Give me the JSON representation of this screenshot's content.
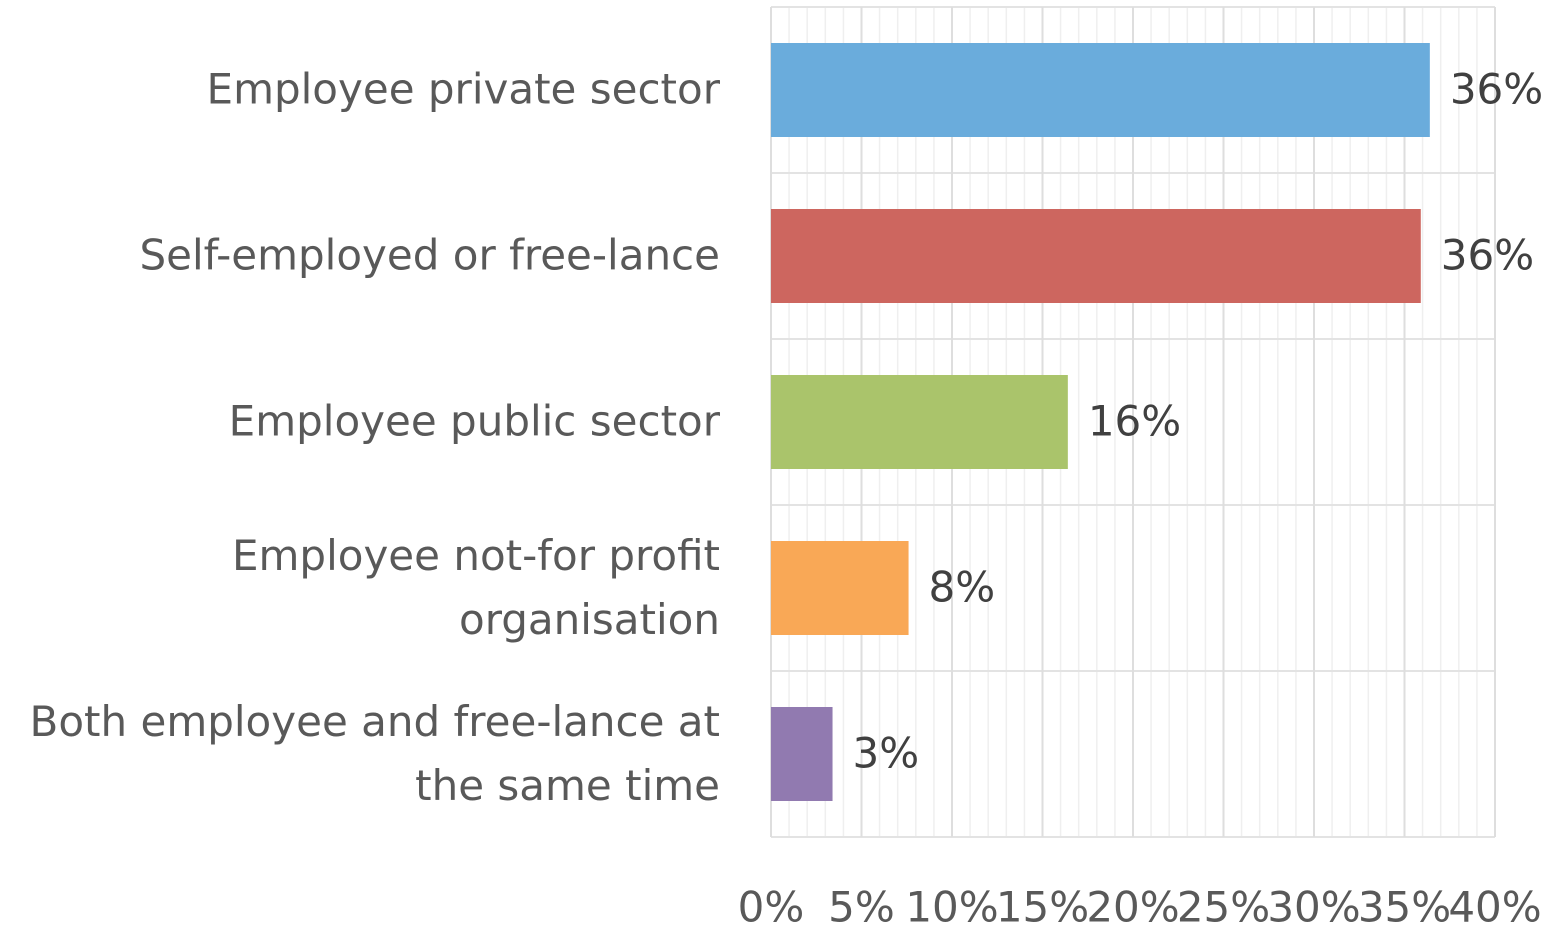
{
  "chart_data": {
    "type": "barh",
    "categories": [
      "Employee private sector",
      "Self-employed or free-lance",
      "Employee public sector",
      "Employee not-for profit\norganisation",
      "Both employee and free-lance at\nthe same time"
    ],
    "values": [
      36.4,
      35.9,
      16.4,
      7.6,
      3.4
    ],
    "value_labels": [
      "36%",
      "36%",
      "16%",
      "8%",
      "3%"
    ],
    "colors": [
      "#6aacdc",
      "#cd665f",
      "#aac46b",
      "#f9a856",
      "#917ab0"
    ],
    "xlim": [
      0,
      40
    ],
    "xticks": [
      {
        "value": 0,
        "label": "0%"
      },
      {
        "value": 5,
        "label": "5%"
      },
      {
        "value": 10,
        "label": "10%"
      },
      {
        "value": 15,
        "label": "15%"
      },
      {
        "value": 20,
        "label": "20%"
      },
      {
        "value": 25,
        "label": "25%"
      },
      {
        "value": 30,
        "label": "30%"
      },
      {
        "value": 35,
        "label": "35%"
      },
      {
        "value": 40,
        "label": "40%"
      }
    ],
    "xminorticks": [
      1,
      2,
      3,
      4,
      6,
      7,
      8,
      9,
      11,
      12,
      13,
      14,
      16,
      17,
      18,
      19,
      21,
      22,
      23,
      24,
      26,
      27,
      28,
      29,
      31,
      32,
      33,
      34,
      36,
      37,
      38,
      39
    ],
    "grid": true
  }
}
